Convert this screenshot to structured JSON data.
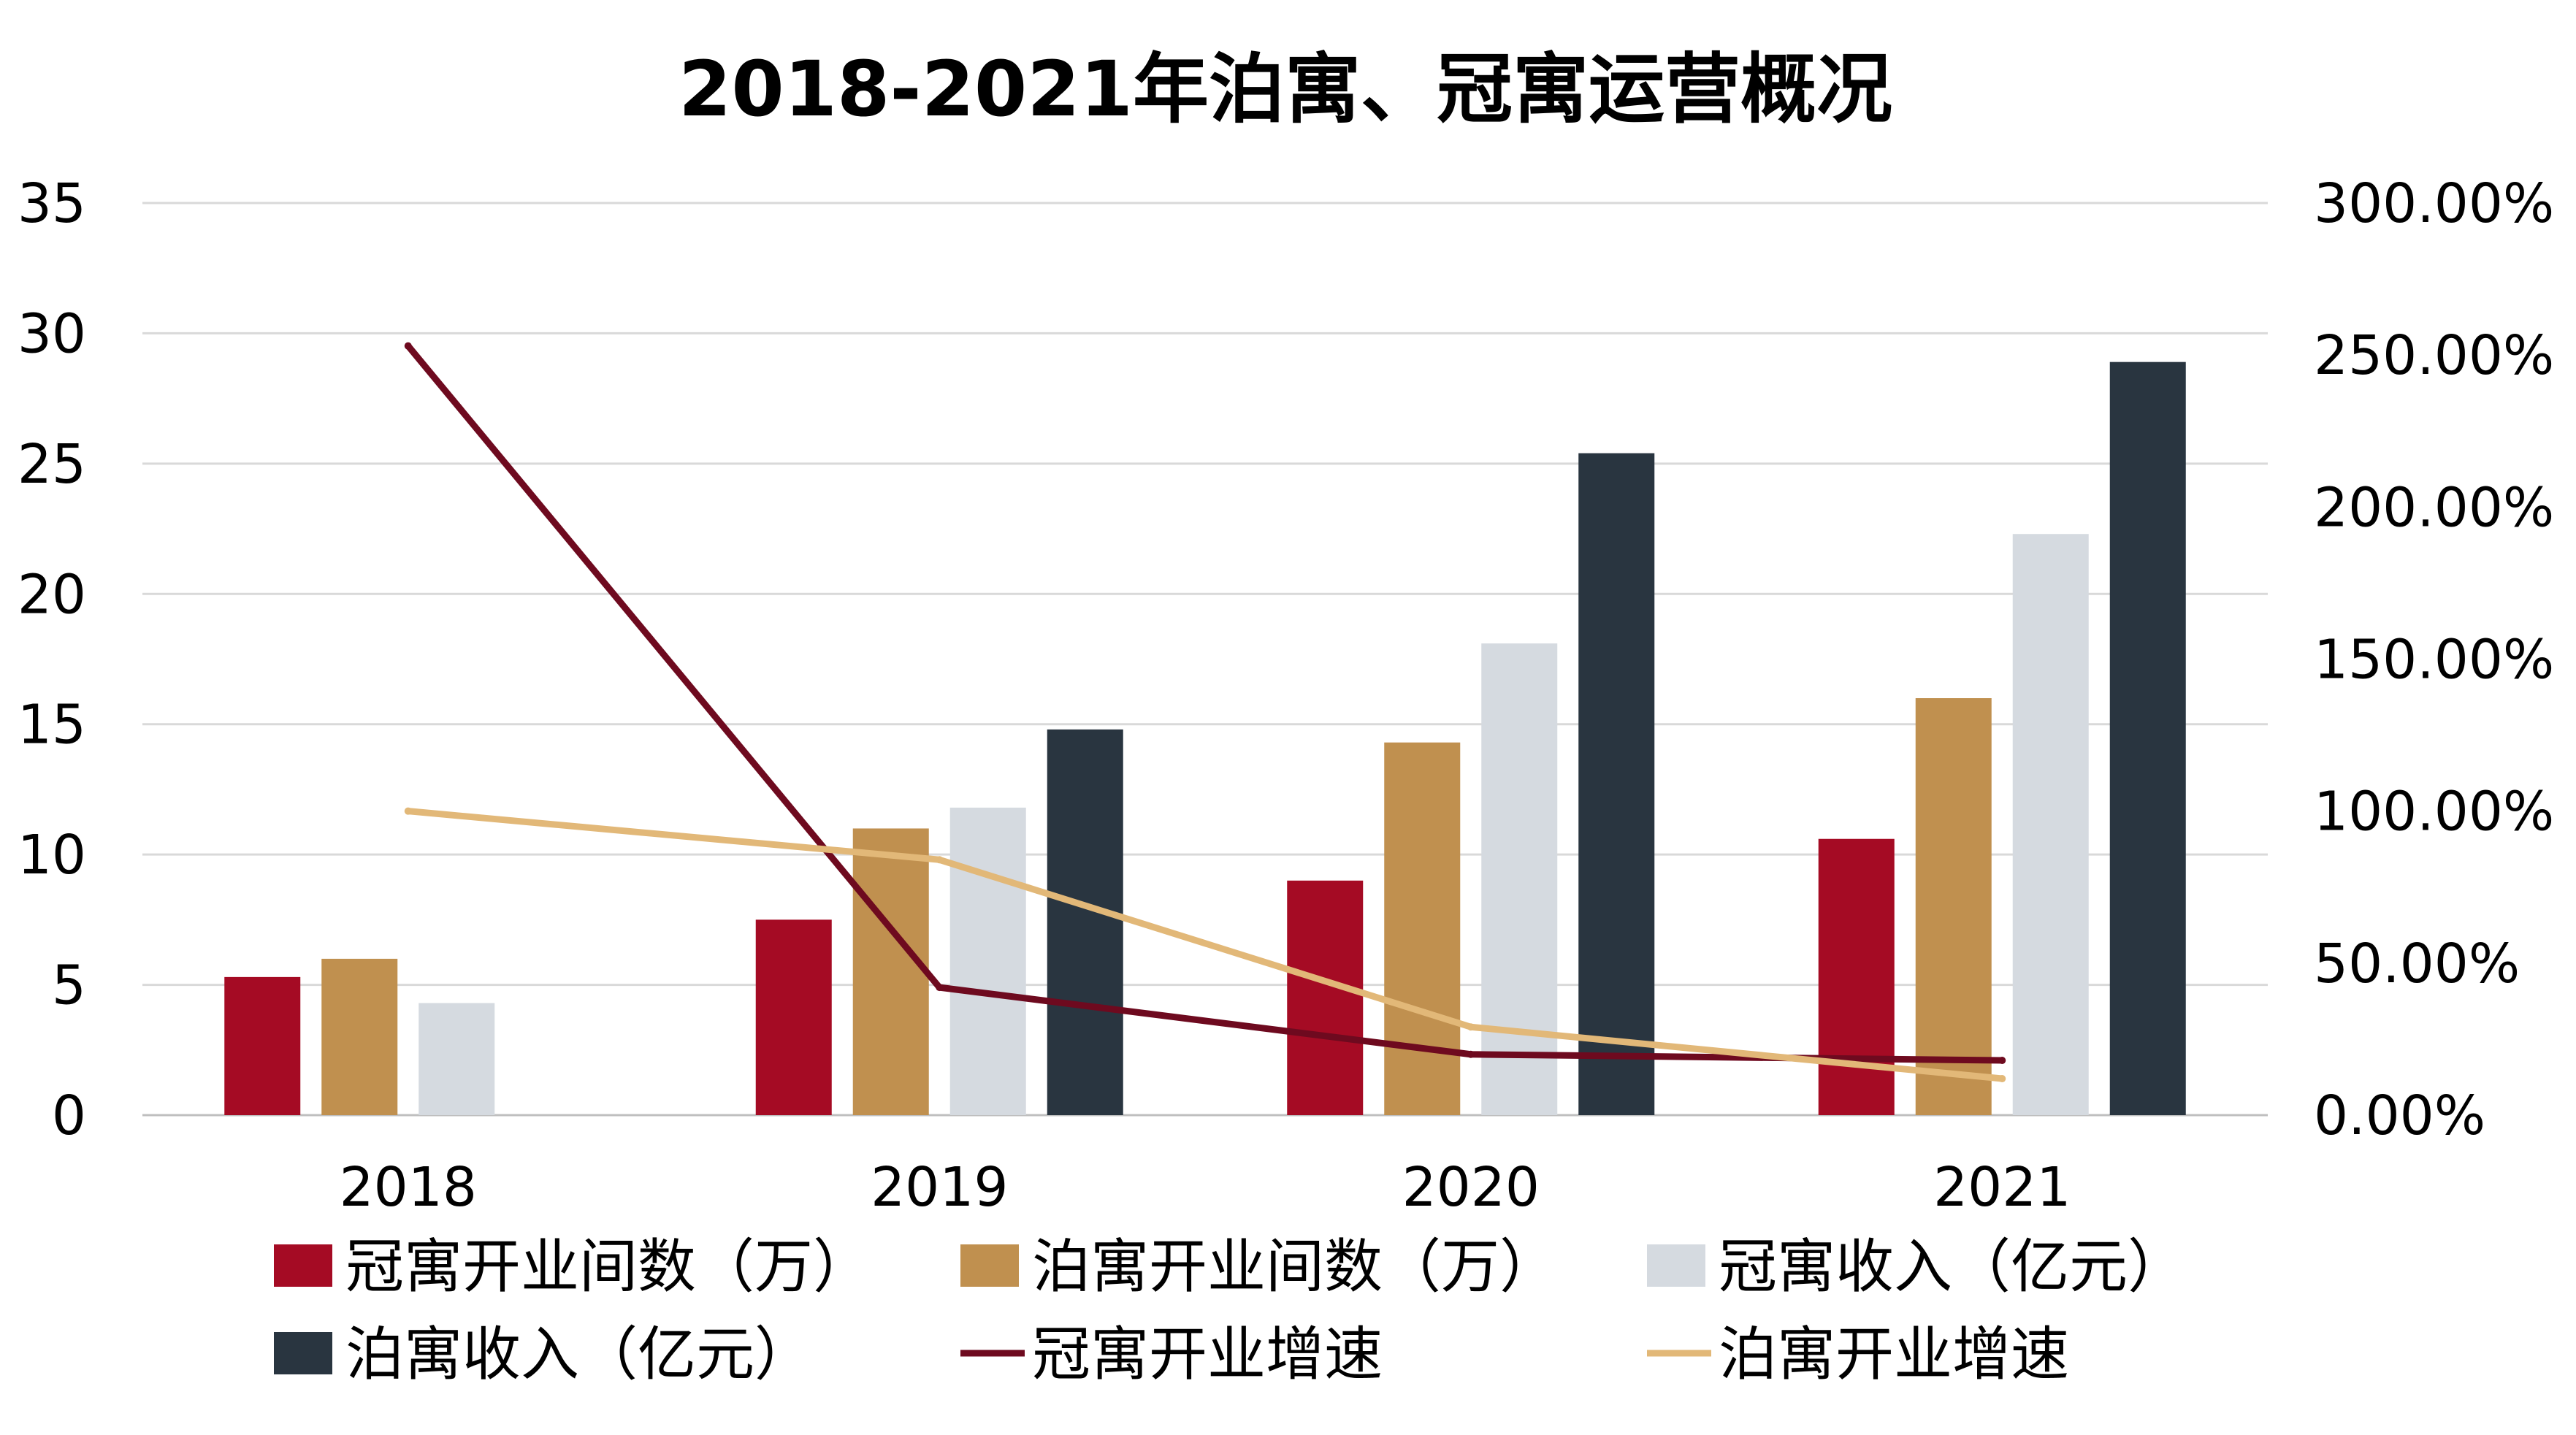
{
  "chart_data": {
    "type": "bar",
    "title": "2018-2021年泊寓、冠寓运营概况",
    "categories": [
      "2018",
      "2019",
      "2020",
      "2021"
    ],
    "y_left": {
      "ylim": [
        0,
        35
      ],
      "ticks": [
        "0",
        "5",
        "10",
        "15",
        "20",
        "25",
        "30",
        "35"
      ]
    },
    "y_right": {
      "ylim": [
        0,
        3
      ],
      "ticks": [
        "0.00%",
        "50.00%",
        "100.00%",
        "150.00%",
        "200.00%",
        "250.00%",
        "300.00%"
      ]
    },
    "grid": true,
    "legend_position": "bottom",
    "bar_series": [
      {
        "name": "冠寓开业间数（万）",
        "color": "#A50B24",
        "values": [
          5.3,
          7.5,
          9.0,
          10.6
        ]
      },
      {
        "name": "泊寓开业间数（万）",
        "color": "#C0904F",
        "values": [
          6.0,
          11.0,
          14.3,
          16.0
        ]
      },
      {
        "name": "冠寓收入（亿元）",
        "color": "#D5DAE0",
        "values": [
          4.3,
          11.8,
          18.1,
          22.3
        ]
      },
      {
        "name": "泊寓收入（亿元）",
        "color": "#293540",
        "values": [
          null,
          14.8,
          25.4,
          28.9
        ]
      }
    ],
    "line_series": [
      {
        "name": "冠寓开业增速",
        "color": "#6E0A1F",
        "axis": "right",
        "values": [
          2.53,
          0.42,
          0.2,
          0.18
        ]
      },
      {
        "name": "泊寓开业增速",
        "color": "#E2B878",
        "axis": "right",
        "values": [
          1.0,
          0.84,
          0.29,
          0.12
        ]
      }
    ]
  }
}
